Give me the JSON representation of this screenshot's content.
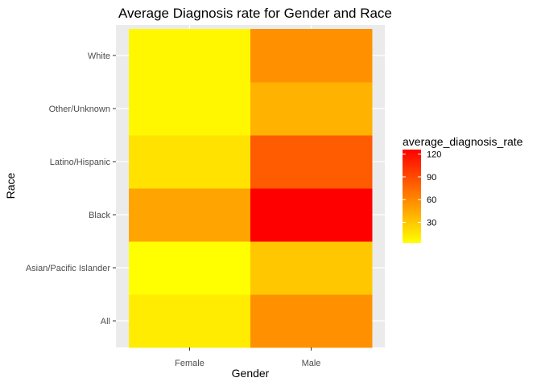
{
  "chart_data": {
    "type": "heatmap",
    "title": "Average Diagnosis rate for Gender and Race",
    "xlabel": "Gender",
    "ylabel": "Race",
    "x_categories": [
      "Female",
      "Male"
    ],
    "y_categories": [
      "All",
      "Asian/Pacific Islander",
      "Black",
      "Latino/Hispanic",
      "Other/Unknown",
      "White"
    ],
    "cells": [
      {
        "x": "Female",
        "y": "All",
        "value": 12
      },
      {
        "x": "Male",
        "y": "All",
        "value": 56
      },
      {
        "x": "Female",
        "y": "Asian/Pacific Islander",
        "value": 3
      },
      {
        "x": "Male",
        "y": "Asian/Pacific Islander",
        "value": 30
      },
      {
        "x": "Female",
        "y": "Black",
        "value": 47
      },
      {
        "x": "Male",
        "y": "Black",
        "value": 126
      },
      {
        "x": "Female",
        "y": "Latino/Hispanic",
        "value": 17
      },
      {
        "x": "Male",
        "y": "Latino/Hispanic",
        "value": 82
      },
      {
        "x": "Female",
        "y": "Other/Unknown",
        "value": 7
      },
      {
        "x": "Male",
        "y": "Other/Unknown",
        "value": 40
      },
      {
        "x": "Female",
        "y": "White",
        "value": 7
      },
      {
        "x": "Male",
        "y": "White",
        "value": 56
      }
    ],
    "legend": {
      "title": "average_diagnosis_rate",
      "ticks": [
        30,
        60,
        90,
        120
      ],
      "range": [
        3,
        126
      ],
      "low_color": "#ffff00",
      "high_color": "#ff0000",
      "placement": "right"
    },
    "panel_background": "#ebebeb",
    "grid": true
  }
}
